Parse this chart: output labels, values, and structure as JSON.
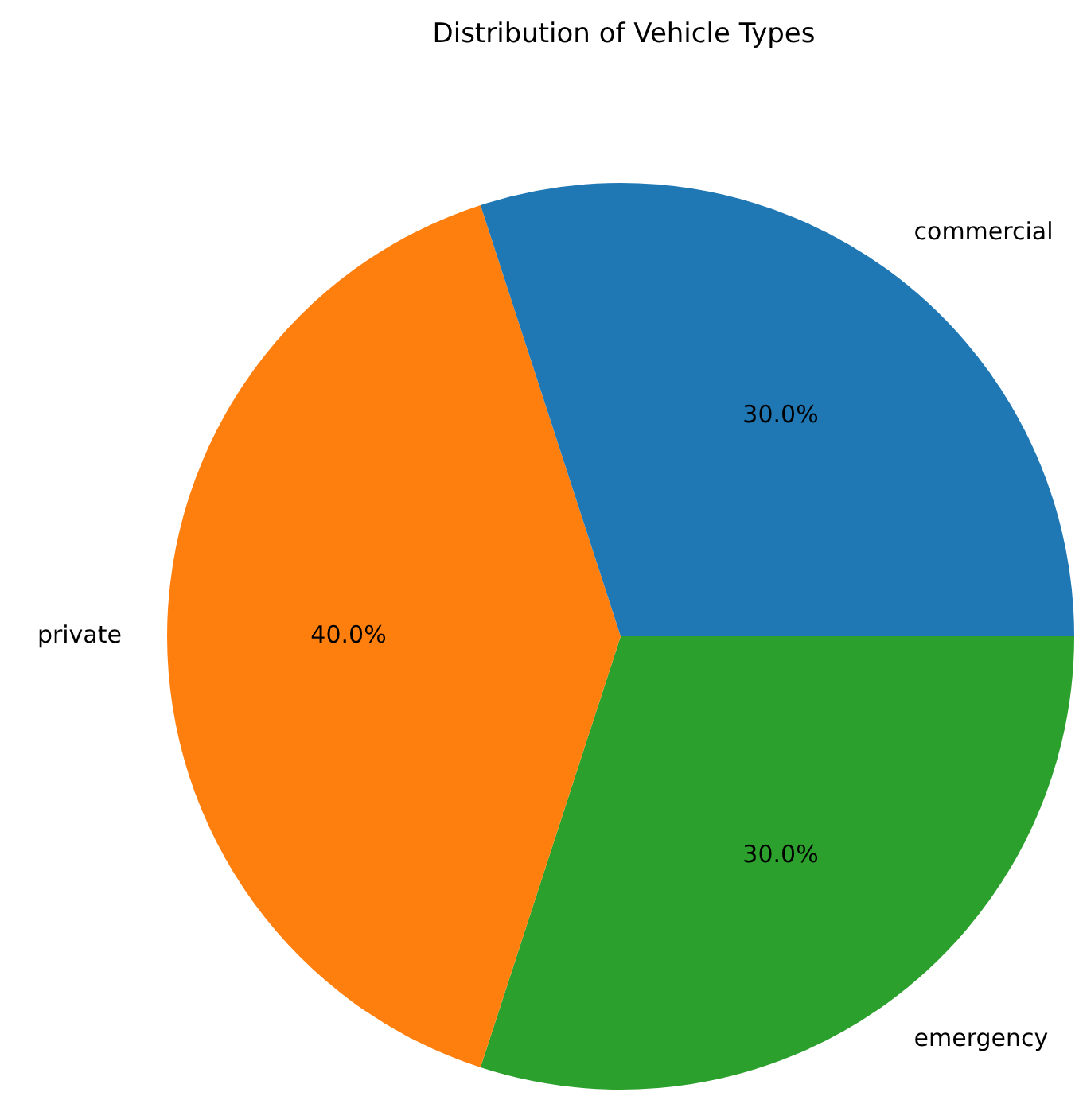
{
  "chart_data": {
    "type": "pie",
    "title": "Distribution of Vehicle Types",
    "categories": [
      "commercial",
      "private",
      "emergency"
    ],
    "values": [
      30,
      40,
      30
    ],
    "colors": [
      "#1f77b4",
      "#ff7f0e",
      "#2ca02c"
    ],
    "value_labels": [
      "30.0%",
      "40.0%",
      "30.0%"
    ],
    "legend": false
  }
}
